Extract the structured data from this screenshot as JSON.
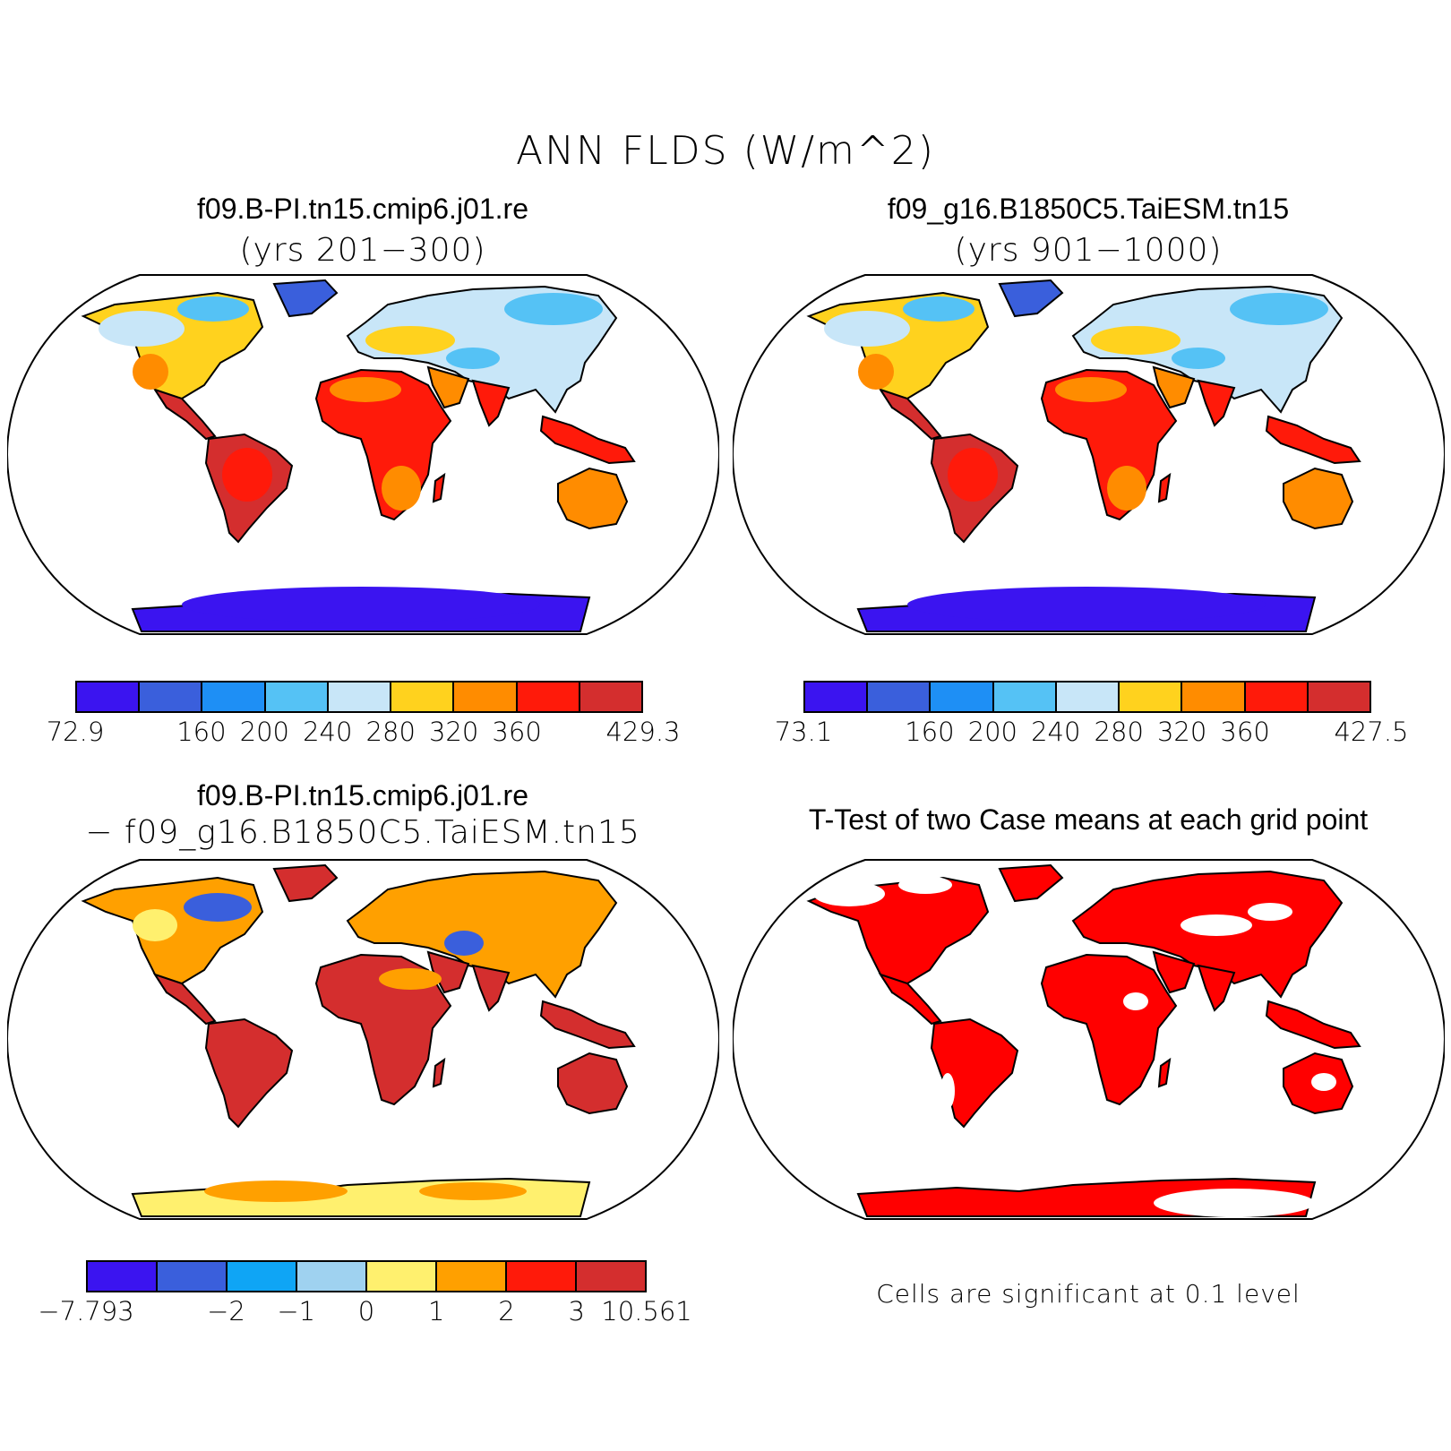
{
  "title": "ANN FLDS (W/m^2)",
  "panels": {
    "case1": {
      "title": "f09.B-PI.tn15.cmip6.j01.re",
      "subtitle": "(yrs 201−300)"
    },
    "case2": {
      "title": "f09_g16.B1850C5.TaiESM.tn15",
      "subtitle": "(yrs 901−1000)"
    },
    "diff": {
      "title": "f09.B-PI.tn15.cmip6.j01.re",
      "subtitle": "− f09_g16.B1850C5.TaiESM.tn15"
    },
    "ttest": {
      "title": "T-Test of two Case means at each grid point",
      "note": "Cells are significant at 0.1 level"
    }
  },
  "colorbars": {
    "case1": {
      "colors": [
        "#3b14f0",
        "#3a5fdc",
        "#1e8ff5",
        "#55c2f5",
        "#c8e6f8",
        "#ffd21e",
        "#ff8c00",
        "#ff1a0a",
        "#d42e2e"
      ],
      "labels": [
        "72.9",
        "160",
        "200",
        "240",
        "280",
        "320",
        "360",
        "429.3"
      ],
      "label_edges": [
        0,
        2,
        3,
        4,
        5,
        6,
        7,
        9
      ]
    },
    "case2": {
      "colors": [
        "#3b14f0",
        "#3a5fdc",
        "#1e8ff5",
        "#55c2f5",
        "#c8e6f8",
        "#ffd21e",
        "#ff8c00",
        "#ff1a0a",
        "#d42e2e"
      ],
      "labels": [
        "73.1",
        "160",
        "200",
        "240",
        "280",
        "320",
        "360",
        "427.5"
      ],
      "label_edges": [
        0,
        2,
        3,
        4,
        5,
        6,
        7,
        9
      ]
    },
    "diff": {
      "colors": [
        "#3b14f0",
        "#3a5fdc",
        "#0fa5f5",
        "#9fd2f0",
        "#fff06e",
        "#ffa000",
        "#ff1a0a",
        "#d42e2e"
      ],
      "labels": [
        "−7.793",
        "−2",
        "−1",
        "0",
        "1",
        "2",
        "3",
        "10.561"
      ],
      "label_edges": [
        0,
        2,
        3,
        4,
        5,
        6,
        7,
        8
      ]
    }
  },
  "map_colors": {
    "tropics": "#d42e2e",
    "warm": "#ff1a0a",
    "mid": "#ff8c00",
    "subtropic": "#ffd21e",
    "cool": "#c8e6f8",
    "cold": "#55c2f5",
    "polar": "#3a5fdc",
    "antarctic": "#3b14f0",
    "significant": "#ff0000",
    "diff_pos": "#d42e2e",
    "diff_mid": "#ffa000",
    "diff_low": "#fff06e",
    "diff_neg": "#3a5fdc"
  }
}
